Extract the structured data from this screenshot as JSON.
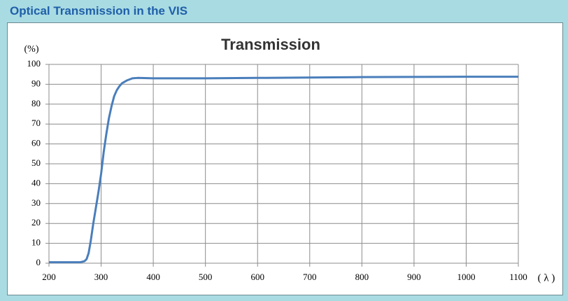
{
  "page_title": "Optical Transmission in the VIS",
  "chart_data": {
    "type": "line",
    "title": "Transmission",
    "y_label": "(%)",
    "x_label": "( λ )",
    "x": [
      200,
      260,
      268,
      272,
      276,
      280,
      285,
      290,
      295,
      300,
      305,
      310,
      315,
      320,
      325,
      330,
      335,
      340,
      350,
      360,
      370,
      400,
      500,
      600,
      700,
      800,
      900,
      1000,
      1100
    ],
    "values": [
      0.5,
      0.5,
      1,
      2,
      5,
      11,
      20,
      28,
      36,
      45,
      56,
      65,
      73,
      79,
      84,
      87,
      89,
      90.5,
      92,
      93,
      93.2,
      93,
      93,
      93.2,
      93.4,
      93.6,
      93.7,
      93.8,
      93.8
    ],
    "color": "#4a7ebb",
    "xlim": [
      200,
      1100
    ],
    "xticks": [
      200,
      300,
      400,
      500,
      600,
      700,
      800,
      900,
      1000,
      1100
    ],
    "ylim": [
      0,
      100
    ],
    "yticks": [
      0,
      10,
      20,
      30,
      40,
      50,
      60,
      70,
      80,
      90,
      100
    ],
    "grid": true
  }
}
